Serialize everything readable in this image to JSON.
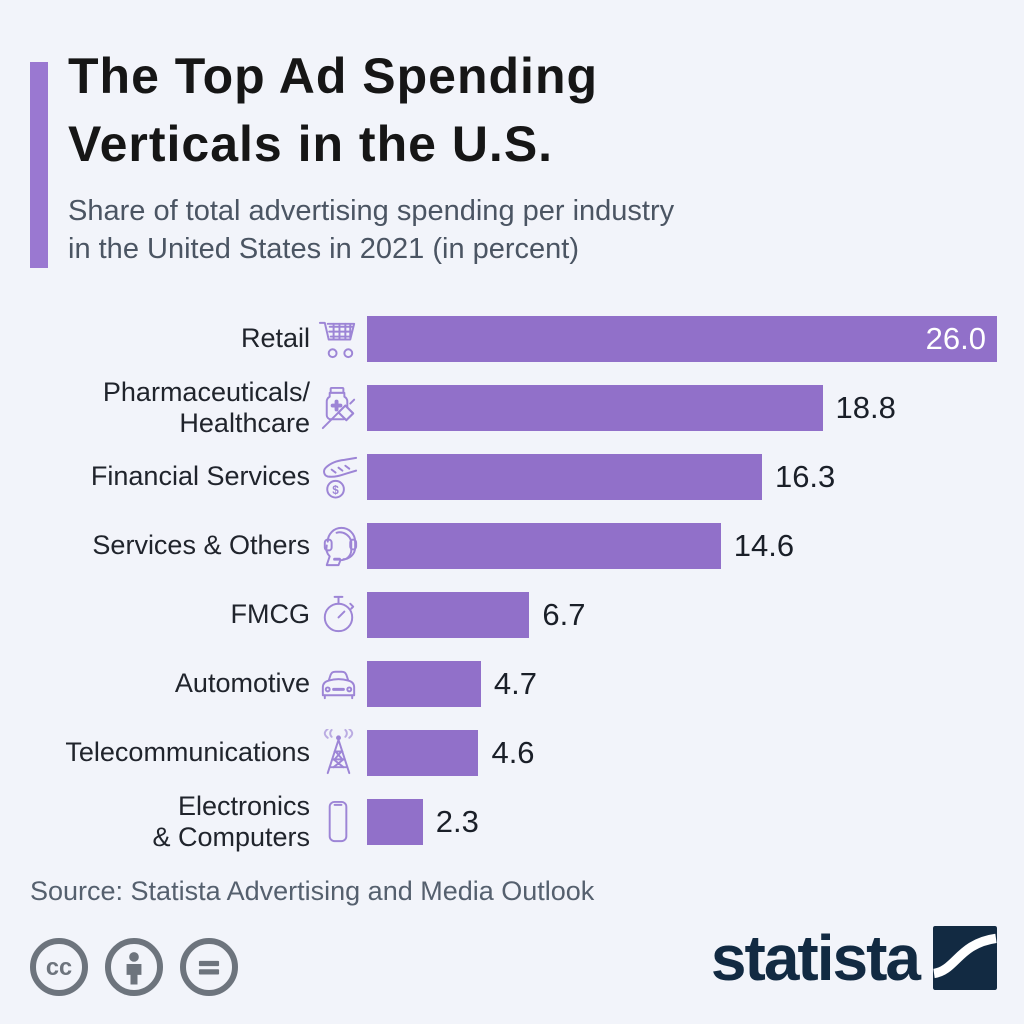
{
  "colors": {
    "background": "#f2f4fa",
    "bar": "#9170c9",
    "accent": "#9a78d1",
    "icon": "#9d85d6",
    "title": "#161616",
    "subtitle": "#4b5563",
    "label": "#20242c",
    "value": "#1a1f28",
    "value_inside": "#ffffff",
    "source": "#55606e",
    "cc": "#6d747d",
    "logo": "#122a42"
  },
  "header": {
    "title_line1": "The Top Ad Spending",
    "title_line2": "Verticals in the U.S.",
    "subtitle_line1": "Share of total advertising spending per industry",
    "subtitle_line2": "in the United States in 2021 (in percent)"
  },
  "chart_data": {
    "type": "bar",
    "orientation": "horizontal",
    "title": "The Top Ad Spending Verticals in the U.S.",
    "subtitle": "Share of total advertising spending per industry in the United States in 2021 (in percent)",
    "unit": "percent",
    "xlim": [
      0,
      26
    ],
    "grid": false,
    "legend": false,
    "categories": [
      "Retail",
      "Pharmaceuticals/Healthcare",
      "Financial Services",
      "Services & Others",
      "FMCG",
      "Automotive",
      "Telecommunications",
      "Electronics & Computers"
    ],
    "values": [
      26.0,
      18.8,
      16.3,
      14.6,
      6.7,
      4.7,
      4.6,
      2.3
    ],
    "rows": [
      {
        "label_lines": [
          "Retail"
        ],
        "icon": "shopping-cart-icon",
        "value": 26.0,
        "display": "26.0",
        "value_inside": true
      },
      {
        "label_lines": [
          "Pharmaceuticals/",
          "Healthcare"
        ],
        "icon": "medicine-bottle-syringe-icon",
        "value": 18.8,
        "display": "18.8",
        "value_inside": false
      },
      {
        "label_lines": [
          "Financial Services"
        ],
        "icon": "hand-coin-icon",
        "value": 16.3,
        "display": "16.3",
        "value_inside": false
      },
      {
        "label_lines": [
          "Services & Others"
        ],
        "icon": "headset-agent-icon",
        "value": 14.6,
        "display": "14.6",
        "value_inside": false
      },
      {
        "label_lines": [
          "FMCG"
        ],
        "icon": "stopwatch-icon",
        "value": 6.7,
        "display": "6.7",
        "value_inside": false
      },
      {
        "label_lines": [
          "Automotive"
        ],
        "icon": "car-icon",
        "value": 4.7,
        "display": "4.7",
        "value_inside": false
      },
      {
        "label_lines": [
          "Telecommunications"
        ],
        "icon": "antenna-tower-icon",
        "value": 4.6,
        "display": "4.6",
        "value_inside": false
      },
      {
        "label_lines": [
          "Electronics",
          "& Computers"
        ],
        "icon": "smartphone-icon",
        "value": 2.3,
        "display": "2.3",
        "value_inside": false
      }
    ]
  },
  "footer": {
    "source": "Source: Statista Advertising and Media Outlook",
    "license_icons": [
      "cc-icon",
      "attribution-person-icon",
      "no-derivatives-icon"
    ],
    "brand": "statista"
  }
}
